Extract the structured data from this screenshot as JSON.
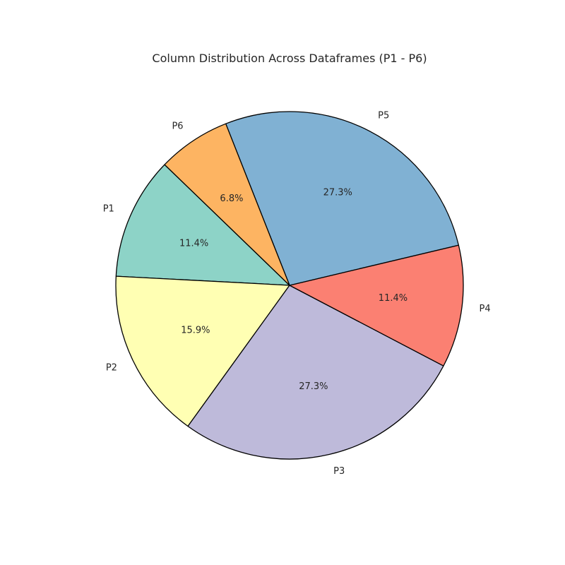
{
  "chart_data": {
    "type": "pie",
    "title": "Column Distribution Across Dataframes (P1 - P6)",
    "start_angle_deg": 136,
    "direction": "counterclockwise",
    "slice_edge_color": "#000000",
    "slices": [
      {
        "label": "P1",
        "value": 11.4,
        "pct_label": "11.4%",
        "color": "#8dd3c7"
      },
      {
        "label": "P2",
        "value": 15.9,
        "pct_label": "15.9%",
        "color": "#ffffb3"
      },
      {
        "label": "P3",
        "value": 27.3,
        "pct_label": "27.3%",
        "color": "#bebada"
      },
      {
        "label": "P4",
        "value": 11.4,
        "pct_label": "11.4%",
        "color": "#fb8072"
      },
      {
        "label": "P5",
        "value": 27.3,
        "pct_label": "27.3%",
        "color": "#80b1d3"
      },
      {
        "label": "P6",
        "value": 6.8,
        "pct_label": "6.8%",
        "color": "#fdb462"
      }
    ]
  }
}
